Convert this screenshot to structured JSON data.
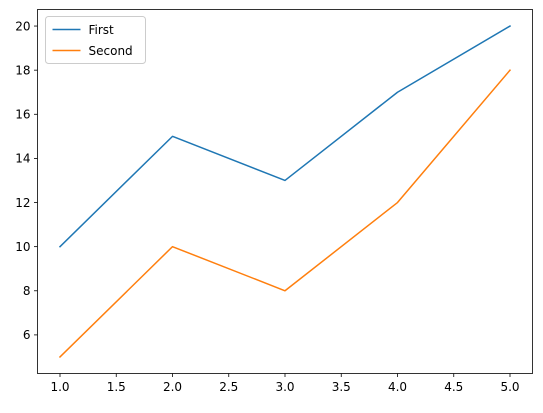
{
  "chart_data": {
    "type": "line",
    "title": "",
    "xlabel": "",
    "ylabel": "",
    "x": [
      1,
      2,
      3,
      4,
      5
    ],
    "series": [
      {
        "name": "First",
        "values": [
          10,
          15,
          13,
          17,
          20
        ],
        "color": "#1f77b4"
      },
      {
        "name": "Second",
        "values": [
          5,
          10,
          8,
          12,
          18
        ],
        "color": "#ff7f0e"
      }
    ],
    "xlim": [
      0.8,
      5.2
    ],
    "ylim": [
      4.25,
      20.75
    ],
    "xticks": [
      1.0,
      1.5,
      2.0,
      2.5,
      3.0,
      3.5,
      4.0,
      4.5,
      5.0
    ],
    "xtick_labels": [
      "1.0",
      "1.5",
      "2.0",
      "2.5",
      "3.0",
      "3.5",
      "4.0",
      "4.5",
      "5.0"
    ],
    "yticks": [
      6,
      8,
      10,
      12,
      14,
      16,
      18,
      20
    ],
    "ytick_labels": [
      "6",
      "8",
      "10",
      "12",
      "14",
      "16",
      "18",
      "20"
    ],
    "grid": false,
    "legend_position": "top-left"
  }
}
